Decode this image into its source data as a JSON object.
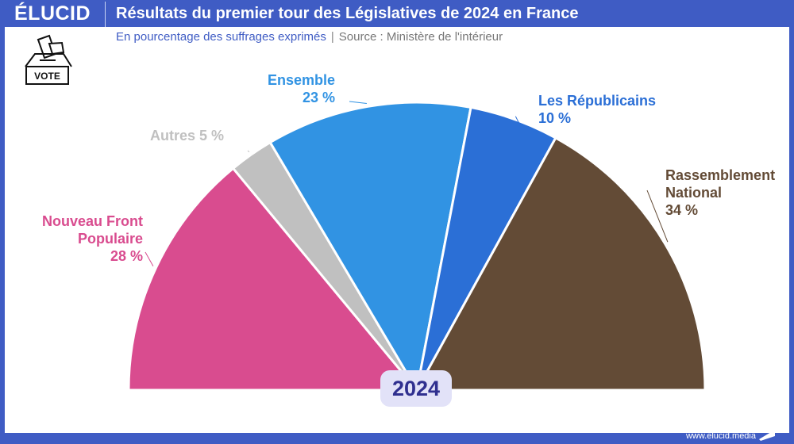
{
  "header": {
    "logo": "ÉLUCID",
    "title": "Résultats du premier tour des Législatives de 2024 en France"
  },
  "subtitle": {
    "text": "En pourcentage des suffrages exprimés",
    "source": "Source : Ministère de l'intérieur"
  },
  "icon": {
    "vote_label": "VOTE"
  },
  "footer": {
    "url": "www.elucid.media"
  },
  "chart_data": {
    "type": "pie",
    "variant": "half-donut (semicircle)",
    "center_label": "2024",
    "slices": [
      {
        "name": "Nouveau Front Populaire",
        "label": "Nouveau Front Populaire",
        "value": 28,
        "value_label": "28 %",
        "color": "#d94c8f"
      },
      {
        "name": "Autres",
        "label": "Autres",
        "value": 5,
        "value_label": "5 %",
        "color": "#c0c0c0"
      },
      {
        "name": "Ensemble",
        "label": "Ensemble",
        "value": 23,
        "value_label": "23 %",
        "color": "#3193e3"
      },
      {
        "name": "Les Républicains",
        "label": "Les Républicains",
        "value": 10,
        "value_label": "10 %",
        "color": "#2b6fd6"
      },
      {
        "name": "Rassemblement National",
        "label": "Rassemblement National",
        "value": 34,
        "value_label": "34 %",
        "color": "#634b36"
      }
    ]
  }
}
